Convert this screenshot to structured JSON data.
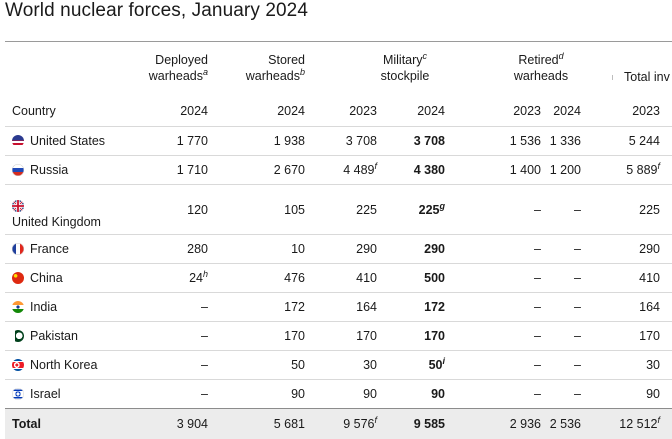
{
  "title": "World nuclear forces, January 2024",
  "headers": {
    "country": "Country",
    "deployed": {
      "line1": "Deployed",
      "line2": "warheads",
      "note": "a",
      "year": "2024"
    },
    "stored": {
      "line1": "Stored",
      "line2": "warheads",
      "note": "b",
      "year": "2024"
    },
    "military": {
      "line1": "Military",
      "note": "c",
      "line2": "stockpile",
      "year1": "2023",
      "year2": "2024"
    },
    "retired": {
      "line1": "Retired",
      "note": "d",
      "line2": "warheads",
      "year1": "2023",
      "year2": "2024"
    },
    "total": {
      "line1": "Total inv",
      "year1": "2023"
    }
  },
  "rows": [
    {
      "country": "United States",
      "flag": "us-flag-icon",
      "deployed": "1 770",
      "deployed_note": "",
      "stored": "1 938",
      "mil2023": "3 708",
      "mil2023_note": "",
      "mil2024": "3 708",
      "mil2024_note": "",
      "ret2023": "1 536",
      "ret2024": "1 336",
      "total2023": "5 244",
      "total2023_note": ""
    },
    {
      "country": "Russia",
      "flag": "russia-flag-icon",
      "deployed": "1 710",
      "deployed_note": "",
      "stored": "2 670",
      "mil2023": "4 489",
      "mil2023_note": "f",
      "mil2024": "4 380",
      "mil2024_note": "",
      "ret2023": "1 400",
      "ret2024": "1 200",
      "total2023": "5 889",
      "total2023_note": "f"
    },
    {
      "country": "United Kingdom",
      "flag": "uk-flag-icon",
      "deployed": "120",
      "deployed_note": "",
      "stored": "105",
      "mil2023": "225",
      "mil2023_note": "",
      "mil2024": "225",
      "mil2024_note": "g",
      "ret2023": "–",
      "ret2024": "–",
      "total2023": "225",
      "total2023_note": ""
    },
    {
      "country": "France",
      "flag": "france-flag-icon",
      "deployed": "280",
      "deployed_note": "",
      "stored": "10",
      "mil2023": "290",
      "mil2023_note": "",
      "mil2024": "290",
      "mil2024_note": "",
      "ret2023": "–",
      "ret2024": "–",
      "total2023": "290",
      "total2023_note": ""
    },
    {
      "country": "China",
      "flag": "china-flag-icon",
      "deployed": "24",
      "deployed_note": "h",
      "stored": "476",
      "mil2023": "410",
      "mil2023_note": "",
      "mil2024": "500",
      "mil2024_note": "",
      "ret2023": "–",
      "ret2024": "–",
      "total2023": "410",
      "total2023_note": ""
    },
    {
      "country": "India",
      "flag": "india-flag-icon",
      "deployed": "–",
      "deployed_note": "",
      "stored": "172",
      "mil2023": "164",
      "mil2023_note": "",
      "mil2024": "172",
      "mil2024_note": "",
      "ret2023": "–",
      "ret2024": "–",
      "total2023": "164",
      "total2023_note": ""
    },
    {
      "country": "Pakistan",
      "flag": "pakistan-flag-icon",
      "deployed": "–",
      "deployed_note": "",
      "stored": "170",
      "mil2023": "170",
      "mil2023_note": "",
      "mil2024": "170",
      "mil2024_note": "",
      "ret2023": "–",
      "ret2024": "–",
      "total2023": "170",
      "total2023_note": ""
    },
    {
      "country": "North Korea",
      "flag": "north-korea-flag-icon",
      "deployed": "–",
      "deployed_note": "",
      "stored": "50",
      "mil2023": "30",
      "mil2023_note": "",
      "mil2024": "50",
      "mil2024_note": "i",
      "ret2023": "–",
      "ret2024": "–",
      "total2023": "30",
      "total2023_note": ""
    },
    {
      "country": "Israel",
      "flag": "israel-flag-icon",
      "deployed": "–",
      "deployed_note": "",
      "stored": "90",
      "mil2023": "90",
      "mil2023_note": "",
      "mil2024": "90",
      "mil2024_note": "",
      "ret2023": "–",
      "ret2024": "–",
      "total2023": "90",
      "total2023_note": ""
    }
  ],
  "total": {
    "label": "Total",
    "deployed": "3 904",
    "stored": "5 681",
    "mil2023": "9 576",
    "mil2023_note": "f",
    "mil2024": "9 585",
    "ret2023": "2 936",
    "ret2024": "2 536",
    "total2023": "12 512",
    "total2023_note": "f"
  }
}
